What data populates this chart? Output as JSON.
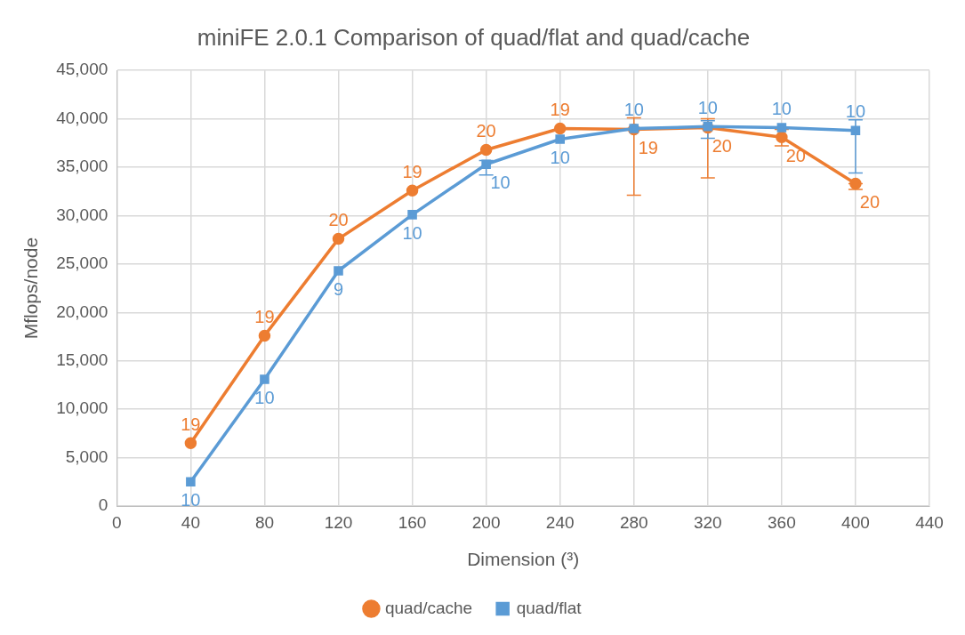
{
  "chart_data": {
    "type": "line",
    "title": "miniFE 2.0.1 Comparison of quad/flat and quad/cache",
    "xlabel": "Dimension (³)",
    "ylabel": "Mflops/node",
    "x": [
      40,
      80,
      120,
      160,
      200,
      240,
      280,
      320,
      360,
      400
    ],
    "series": [
      {
        "name": "quad/cache",
        "color": "#ed7d31",
        "marker": "circle",
        "values": [
          6500,
          17600,
          27600,
          32600,
          36800,
          39000,
          38900,
          39100,
          38100,
          33300
        ],
        "errors": [
          null,
          null,
          null,
          null,
          null,
          null,
          [
            32100,
            40100
          ],
          [
            33900,
            40000
          ],
          [
            37200,
            38900
          ],
          [
            32700,
            33300
          ]
        ]
      },
      {
        "name": "quad/flat",
        "color": "#5b9bd5",
        "marker": "square",
        "values": [
          2500,
          13100,
          24300,
          30100,
          35300,
          37900,
          39000,
          39200,
          39100,
          38800
        ],
        "errors": [
          null,
          null,
          null,
          null,
          [
            34200,
            35700
          ],
          null,
          null,
          [
            38000,
            39800
          ],
          null,
          [
            34400,
            39900
          ]
        ]
      }
    ],
    "annotations": [
      {
        "text": "19",
        "x": 40,
        "y": 6500
      },
      {
        "text": "19",
        "x": 80,
        "y": 17600
      },
      {
        "text": "20",
        "x": 120,
        "y": 27600
      },
      {
        "text": "19",
        "x": 160,
        "y": 32600
      },
      {
        "text": "20",
        "x": 200,
        "y": 36800
      },
      {
        "text": "19",
        "x": 240,
        "y": 39000
      },
      {
        "text": "19",
        "x": 280,
        "y": 38900
      },
      {
        "text": "20",
        "x": 320,
        "y": 39100
      },
      {
        "text": "20",
        "x": 360,
        "y": 38100
      },
      {
        "text": "20",
        "x": 400,
        "y": 33300
      },
      {
        "text": "10",
        "x": 40,
        "y": 2500
      },
      {
        "text": "10",
        "x": 80,
        "y": 13100
      },
      {
        "text": "9",
        "x": 120,
        "y": 24300
      },
      {
        "text": "10",
        "x": 160,
        "y": 30100
      },
      {
        "text": "10",
        "x": 200,
        "y": 35300
      },
      {
        "text": "10",
        "x": 240,
        "y": 37900
      },
      {
        "text": "10",
        "x": 280,
        "y": 39000
      },
      {
        "text": "10",
        "x": 320,
        "y": 39200
      },
      {
        "text": "10",
        "x": 360,
        "y": 39100
      },
      {
        "text": "10",
        "x": 400,
        "y": 38800
      }
    ],
    "xlim": [
      0,
      440
    ],
    "xticks": [
      0,
      40,
      80,
      120,
      160,
      200,
      240,
      280,
      320,
      360,
      400,
      440
    ],
    "ylim": [
      0,
      45000
    ],
    "yticks": [
      0,
      {
        "value": 5000,
        "label": "5,000"
      },
      {
        "value": 10000,
        "label": "10,000"
      },
      {
        "value": 15000,
        "label": "15,000"
      },
      {
        "value": 20000,
        "label": "20,000"
      },
      {
        "value": 25000,
        "label": "25,000"
      },
      {
        "value": 30000,
        "label": "30,000"
      },
      {
        "value": 35000,
        "label": "35,000"
      },
      {
        "value": 40000,
        "label": "40,000"
      },
      {
        "value": 45000,
        "label": "45,000"
      }
    ],
    "grid": true,
    "legend": "bottom",
    "line_style": "solid"
  }
}
